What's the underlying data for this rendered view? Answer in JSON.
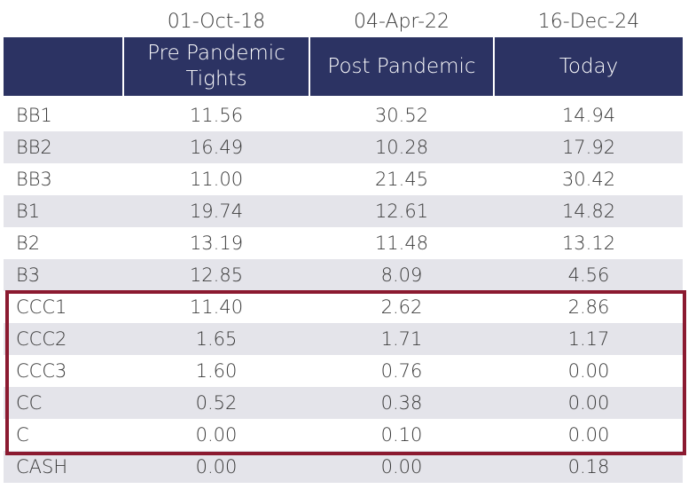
{
  "dates": [
    "01-Oct-18",
    "04-Apr-22",
    "16-Dec-24"
  ],
  "headers": [
    "Pre Pandemic Tights",
    "Post Pandemic",
    "Today"
  ],
  "rows": [
    {
      "label": "BB1",
      "values": [
        "11.56",
        "30.52",
        "14.94"
      ]
    },
    {
      "label": "BB2",
      "values": [
        "16.49",
        "10.28",
        "17.92"
      ]
    },
    {
      "label": "BB3",
      "values": [
        "11.00",
        "21.45",
        "30.42"
      ]
    },
    {
      "label": "B1",
      "values": [
        "19.74",
        "12.61",
        "14.82"
      ]
    },
    {
      "label": "B2",
      "values": [
        "13.19",
        "11.48",
        "13.12"
      ]
    },
    {
      "label": "B3",
      "values": [
        "12.85",
        "8.09",
        "4.56"
      ]
    },
    {
      "label": "CCC1",
      "values": [
        "11.40",
        "2.62",
        "2.86"
      ]
    },
    {
      "label": "CCC2",
      "values": [
        "1.65",
        "1.71",
        "1.17"
      ]
    },
    {
      "label": "CCC3",
      "values": [
        "1.60",
        "0.76",
        "0.00"
      ]
    },
    {
      "label": "CC",
      "values": [
        "0.52",
        "0.38",
        "0.00"
      ]
    },
    {
      "label": "C",
      "values": [
        "0.00",
        "0.10",
        "0.00"
      ]
    },
    {
      "label": "CASH",
      "values": [
        "0.00",
        "0.00",
        "0.18"
      ]
    }
  ],
  "colors": {
    "header_bg": "#2c3363",
    "stripe": "#e4e4ea",
    "highlight_border": "#8b1a30"
  }
}
